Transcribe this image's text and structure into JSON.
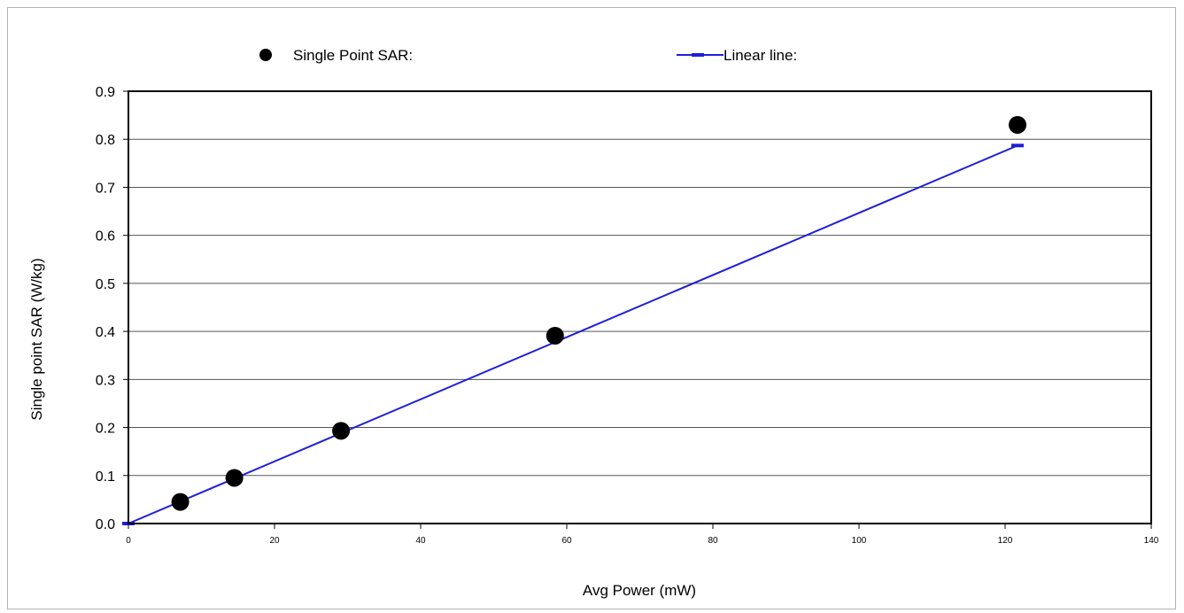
{
  "chart_data": {
    "type": "scatter",
    "xlabel": "Avg Power (mW)",
    "ylabel": "Single point SAR (W/kg)",
    "xlim": [
      0,
      140
    ],
    "ylim": [
      0,
      0.9
    ],
    "x_ticks": [
      0,
      20,
      40,
      60,
      80,
      100,
      120,
      140
    ],
    "y_ticks": [
      0.0,
      0.1,
      0.2,
      0.3,
      0.4,
      0.5,
      0.6,
      0.7,
      0.8,
      0.9
    ],
    "y_tick_labels": [
      "0.0",
      "0.1",
      "0.2",
      "0.3",
      "0.4",
      "0.5",
      "0.6",
      "0.7",
      "0.8",
      "0.9"
    ],
    "grid": "horizontal",
    "legend_position": "top",
    "series": [
      {
        "name": "Single Point SAR:",
        "kind": "markers",
        "color": "#000000",
        "x": [
          7.1,
          14.5,
          29.1,
          58.4,
          121.7
        ],
        "y": [
          0.045,
          0.095,
          0.193,
          0.391,
          0.83
        ]
      },
      {
        "name": "Linear line:",
        "kind": "line",
        "color": "#1f1fd8",
        "x": [
          0,
          121.7
        ],
        "y": [
          0,
          0.787
        ]
      }
    ]
  }
}
